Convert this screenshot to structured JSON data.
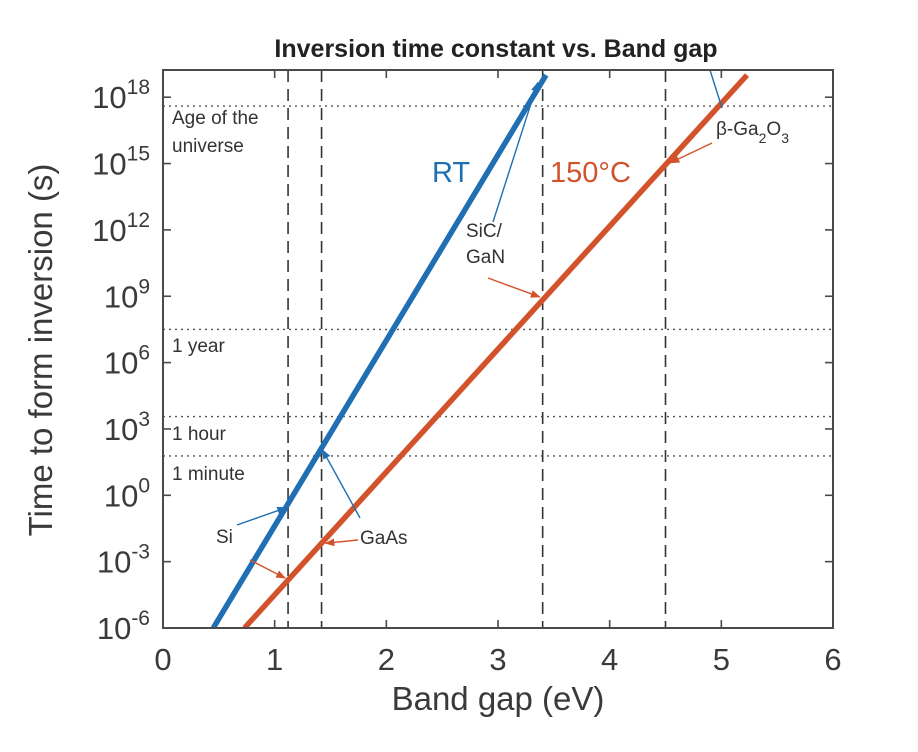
{
  "chart_data": {
    "type": "line",
    "title": "Inversion time constant vs. Band gap",
    "xlabel": "Band gap (eV)",
    "ylabel": "Time to form inversion (s)",
    "xlim": [
      0,
      6
    ],
    "ylim_exponent": [
      -6,
      19
    ],
    "y_scale": "log",
    "x_ticks": [
      "0",
      "1",
      "2",
      "3",
      "4",
      "5",
      "6"
    ],
    "y_ticks": [
      {
        "base": "10",
        "exp": "-6"
      },
      {
        "base": "10",
        "exp": "-3"
      },
      {
        "base": "10",
        "exp": "0"
      },
      {
        "base": "10",
        "exp": "3"
      },
      {
        "base": "10",
        "exp": "6"
      },
      {
        "base": "10",
        "exp": "9"
      },
      {
        "base": "10",
        "exp": "12"
      },
      {
        "base": "10",
        "exp": "15"
      },
      {
        "base": "10",
        "exp": "18"
      }
    ],
    "series": [
      {
        "name": "RT",
        "color": "#1f6fb2",
        "x": [
          0.45,
          3.43
        ],
        "log10_y": [
          -6,
          19
        ]
      },
      {
        "name": "150°C",
        "color": "#d2532b",
        "x": [
          0.73,
          5.23
        ],
        "log10_y": [
          -6,
          19
        ]
      }
    ],
    "reference_lines": [
      {
        "label": "Age of the universe",
        "label_lines": [
          "Age of the",
          "universe"
        ],
        "log10_y": 17.6
      },
      {
        "label": "1 year",
        "log10_y": 7.5
      },
      {
        "label": "1 hour",
        "log10_y": 3.56
      },
      {
        "label": "1 minute",
        "log10_y": 1.78
      }
    ],
    "materials": [
      {
        "label": "Si",
        "label_lines": [
          "Si"
        ],
        "bandgap_eV": 1.12
      },
      {
        "label": "GaAs",
        "label_lines": [
          "GaAs"
        ],
        "bandgap_eV": 1.42
      },
      {
        "label": "SiC/GaN",
        "label_lines": [
          "SiC/",
          "GaN"
        ],
        "bandgap_eV": 3.4
      },
      {
        "label": "β-Ga2O3",
        "label_lines": [
          "β-Ga2O3"
        ],
        "bandgap_eV": 4.5
      }
    ],
    "grid": false,
    "legend": "inline labels"
  }
}
